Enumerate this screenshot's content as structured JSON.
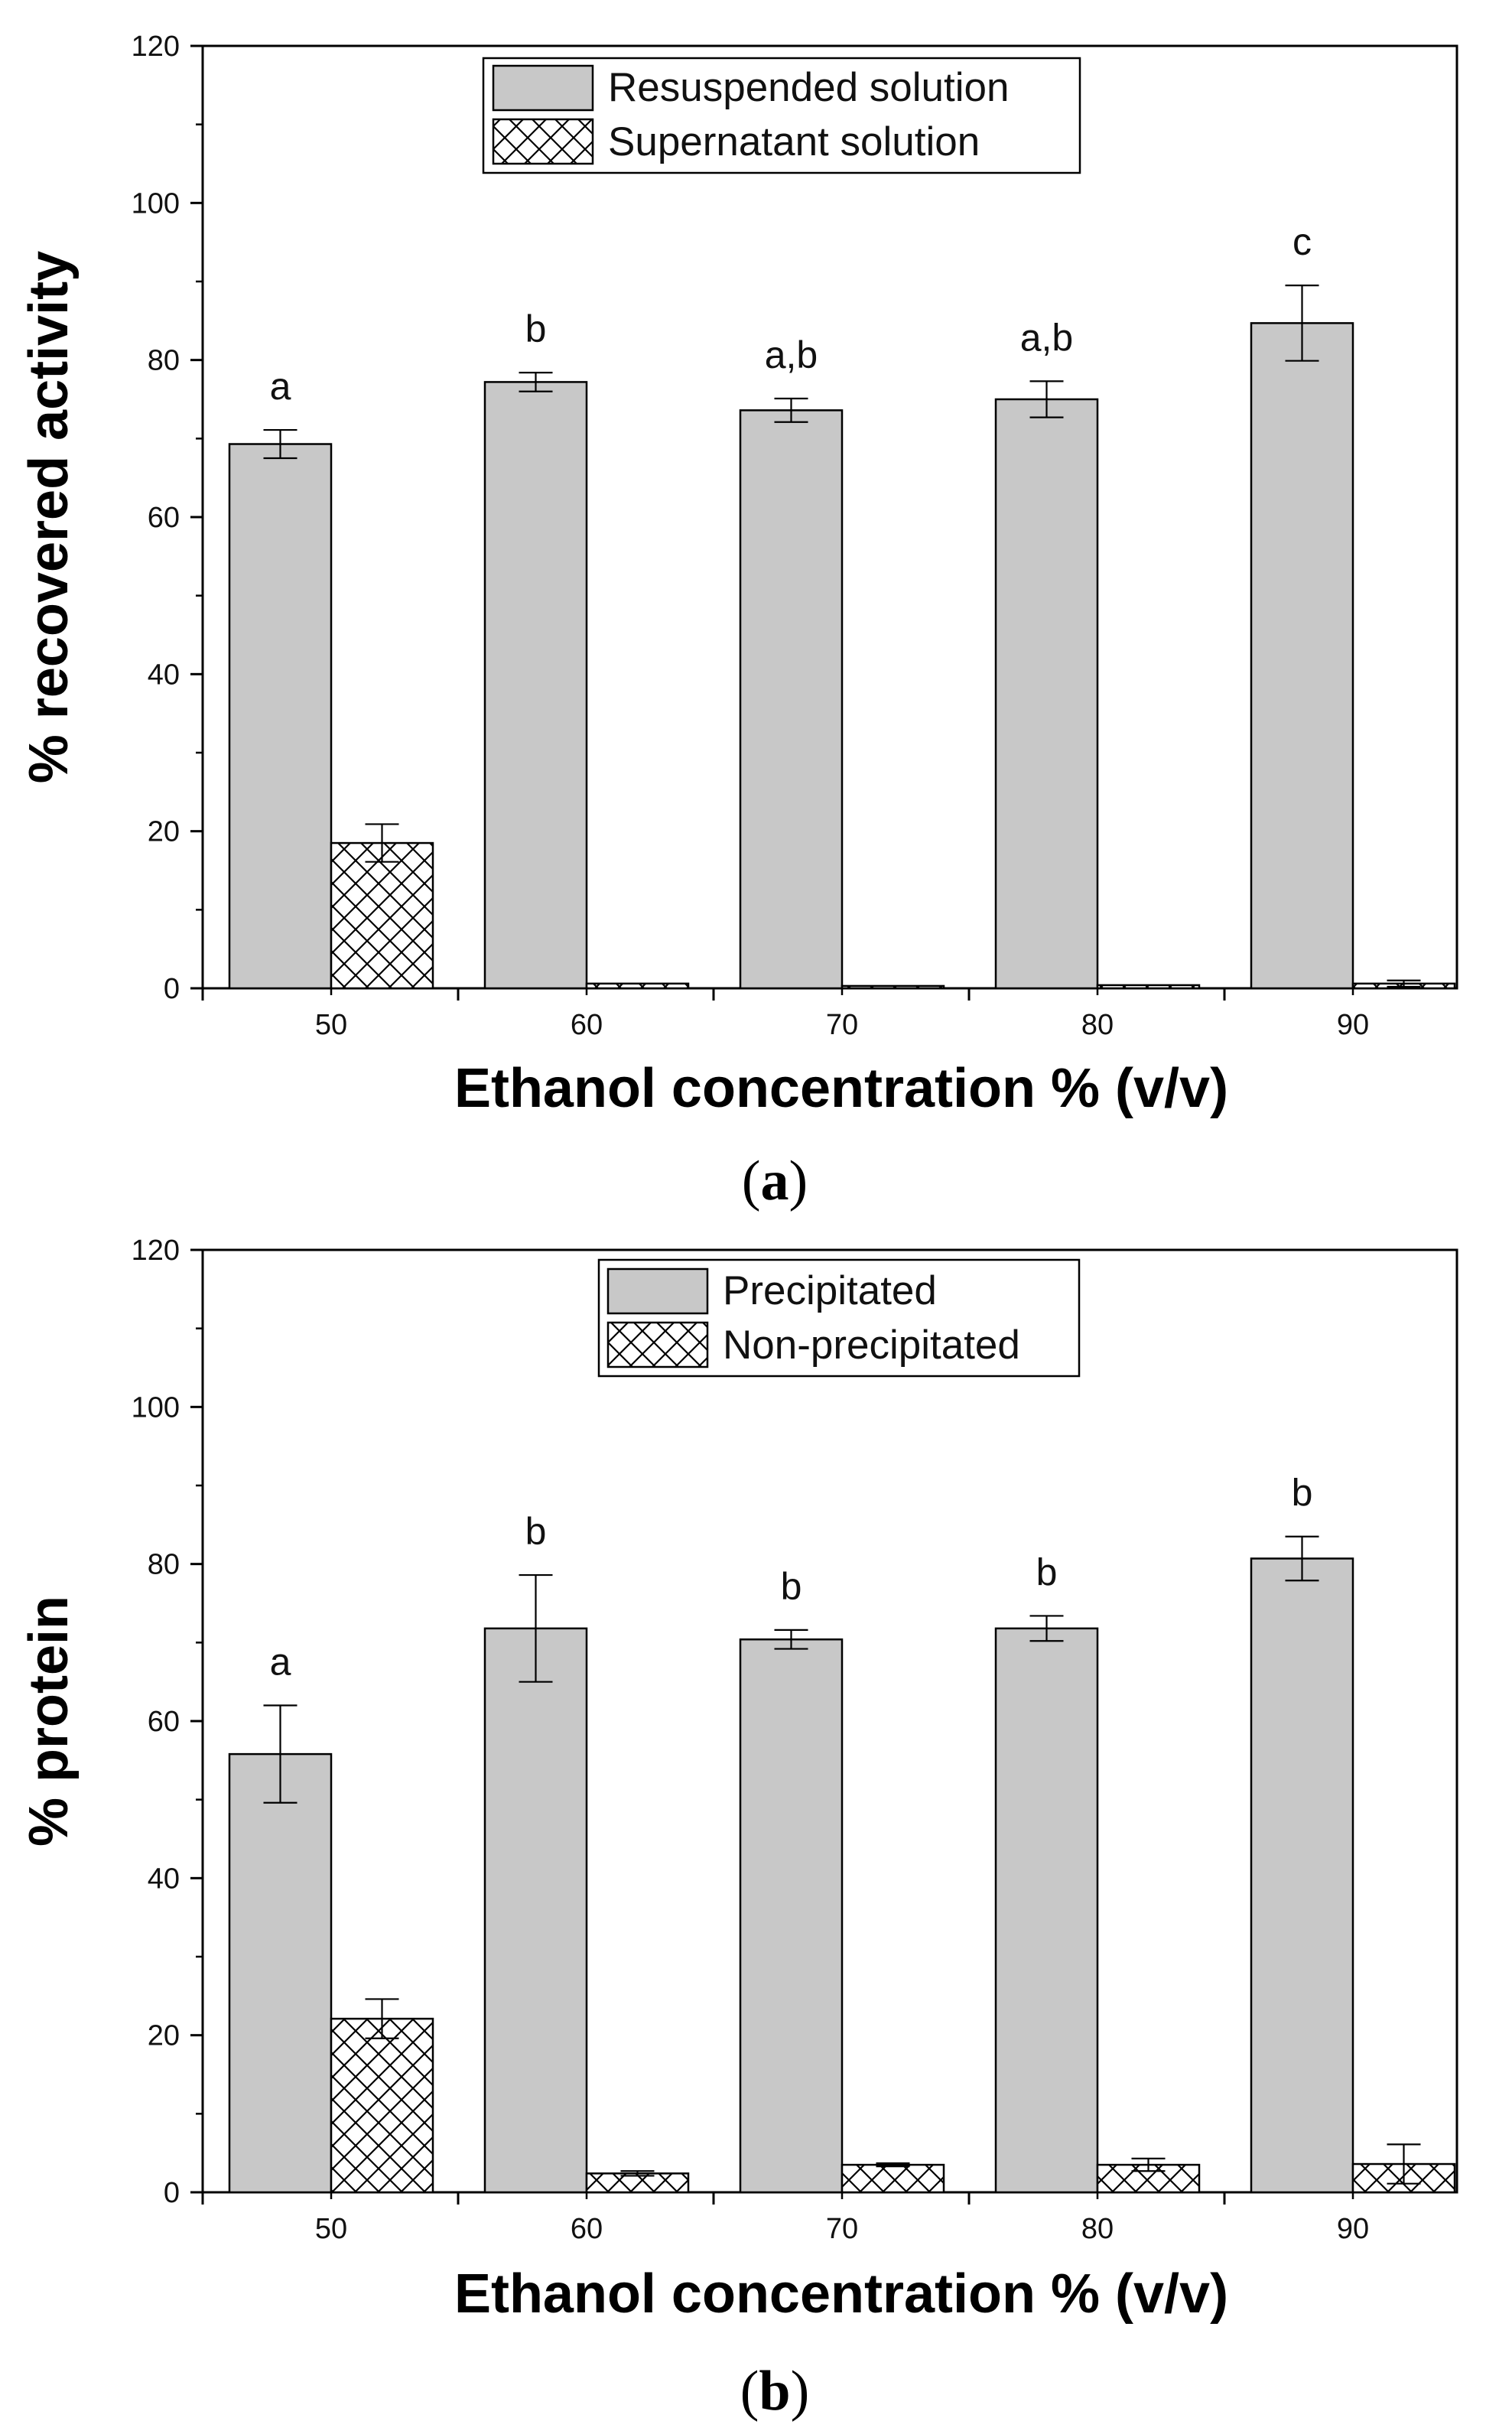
{
  "colors": {
    "bar_fill": "#c8c8c8",
    "hatch_fill": "#ffffff",
    "stroke": "#000000"
  },
  "chart_data": [
    {
      "type": "bar",
      "panel": "a",
      "categories": [
        "50",
        "60",
        "70",
        "80",
        "90"
      ],
      "xlabel": "Ethanol concentration % (v/v)",
      "ylabel": "% recovered activity",
      "ylim": [
        0,
        120
      ],
      "yticks": [
        0,
        20,
        40,
        60,
        80,
        100,
        120
      ],
      "legend_position": "top-center",
      "series": [
        {
          "name": "Resuspended solution",
          "pattern": "solid",
          "values": [
            69.3,
            77.2,
            73.6,
            75.0,
            84.7
          ],
          "errors": [
            1.8,
            1.2,
            1.5,
            2.3,
            4.8
          ],
          "labels": [
            "a",
            "b",
            "a,b",
            "a,b",
            "c"
          ]
        },
        {
          "name": "Supernatant solution",
          "pattern": "crosshatch",
          "values": [
            18.5,
            0.6,
            0.3,
            0.4,
            0.6
          ],
          "errors": [
            2.4,
            0.0,
            0.0,
            0.0,
            0.4
          ]
        }
      ],
      "caption": "a"
    },
    {
      "type": "bar",
      "panel": "b",
      "categories": [
        "50",
        "60",
        "70",
        "80",
        "90"
      ],
      "xlabel": "Ethanol concentration % (v/v)",
      "ylabel": "% protein",
      "ylim": [
        0,
        120
      ],
      "yticks": [
        0,
        20,
        40,
        60,
        80,
        100,
        120
      ],
      "legend_position": "top-center",
      "series": [
        {
          "name": "Precipitated",
          "pattern": "solid",
          "values": [
            55.8,
            71.8,
            70.4,
            71.8,
            80.7
          ],
          "errors": [
            6.2,
            6.8,
            1.2,
            1.6,
            2.8
          ],
          "labels": [
            "a",
            "b",
            "b",
            "b",
            "b"
          ]
        },
        {
          "name": "Non-precipitated",
          "pattern": "crosshatch",
          "values": [
            22.1,
            2.4,
            3.5,
            3.5,
            3.6
          ],
          "errors": [
            2.5,
            0.3,
            0.2,
            0.8,
            2.5
          ]
        }
      ],
      "caption": "b"
    }
  ]
}
